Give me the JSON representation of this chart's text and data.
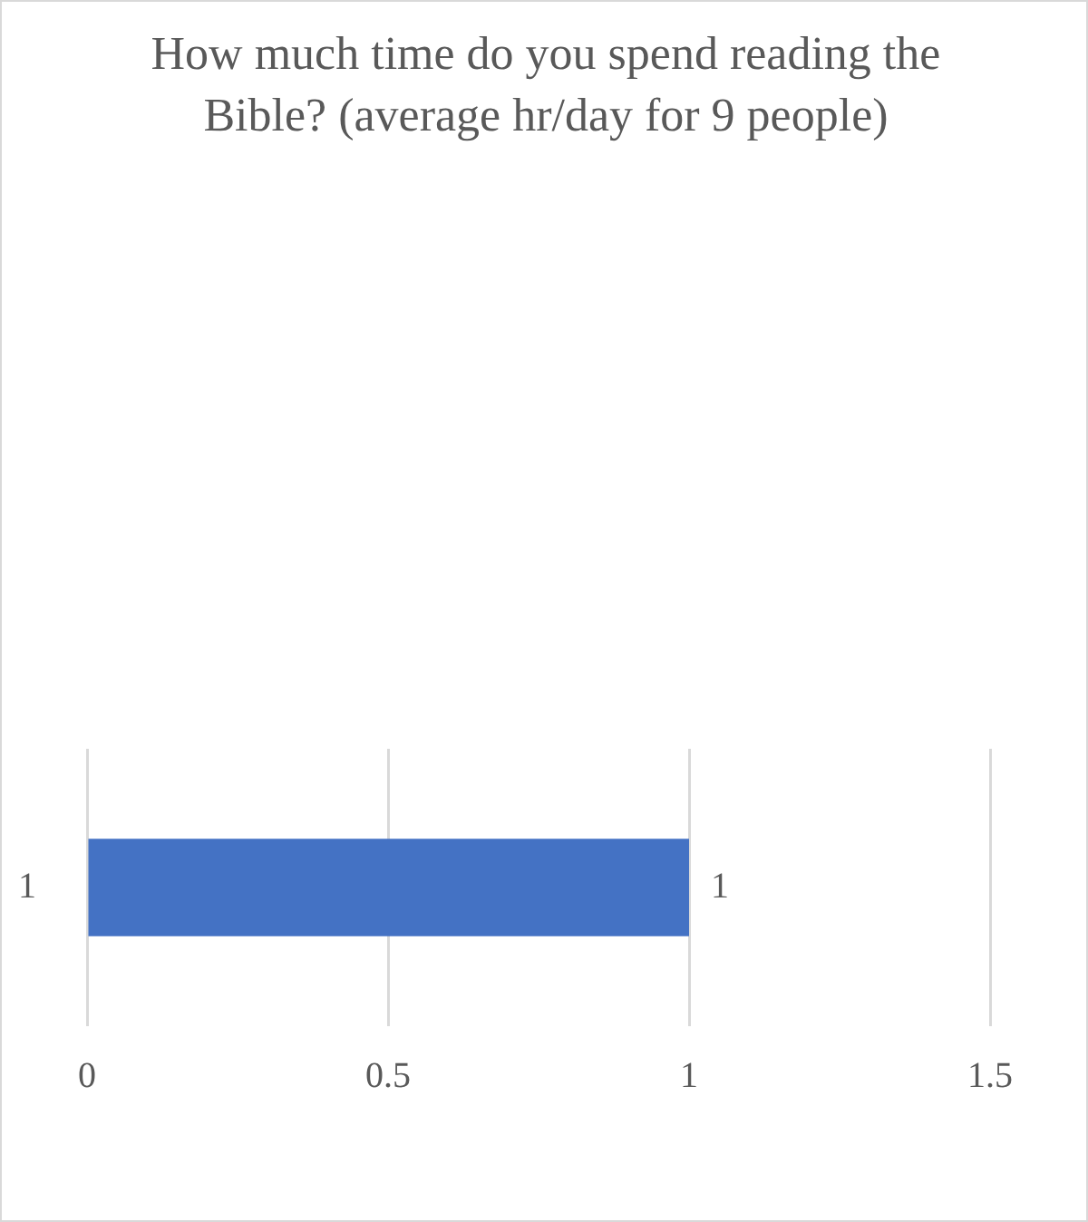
{
  "chart_data": {
    "type": "bar",
    "orientation": "horizontal",
    "title": "How much time do you spend reading the Bible? (average hr/day for 9 people)",
    "categories": [
      "1"
    ],
    "series": [
      {
        "color": "#4472c4",
        "values": [
          1
        ]
      }
    ],
    "xlim": [
      0,
      1.5
    ],
    "xticks": [
      0,
      0.5,
      1,
      1.5
    ],
    "grid": "x",
    "legend": false,
    "data_labels": true
  }
}
